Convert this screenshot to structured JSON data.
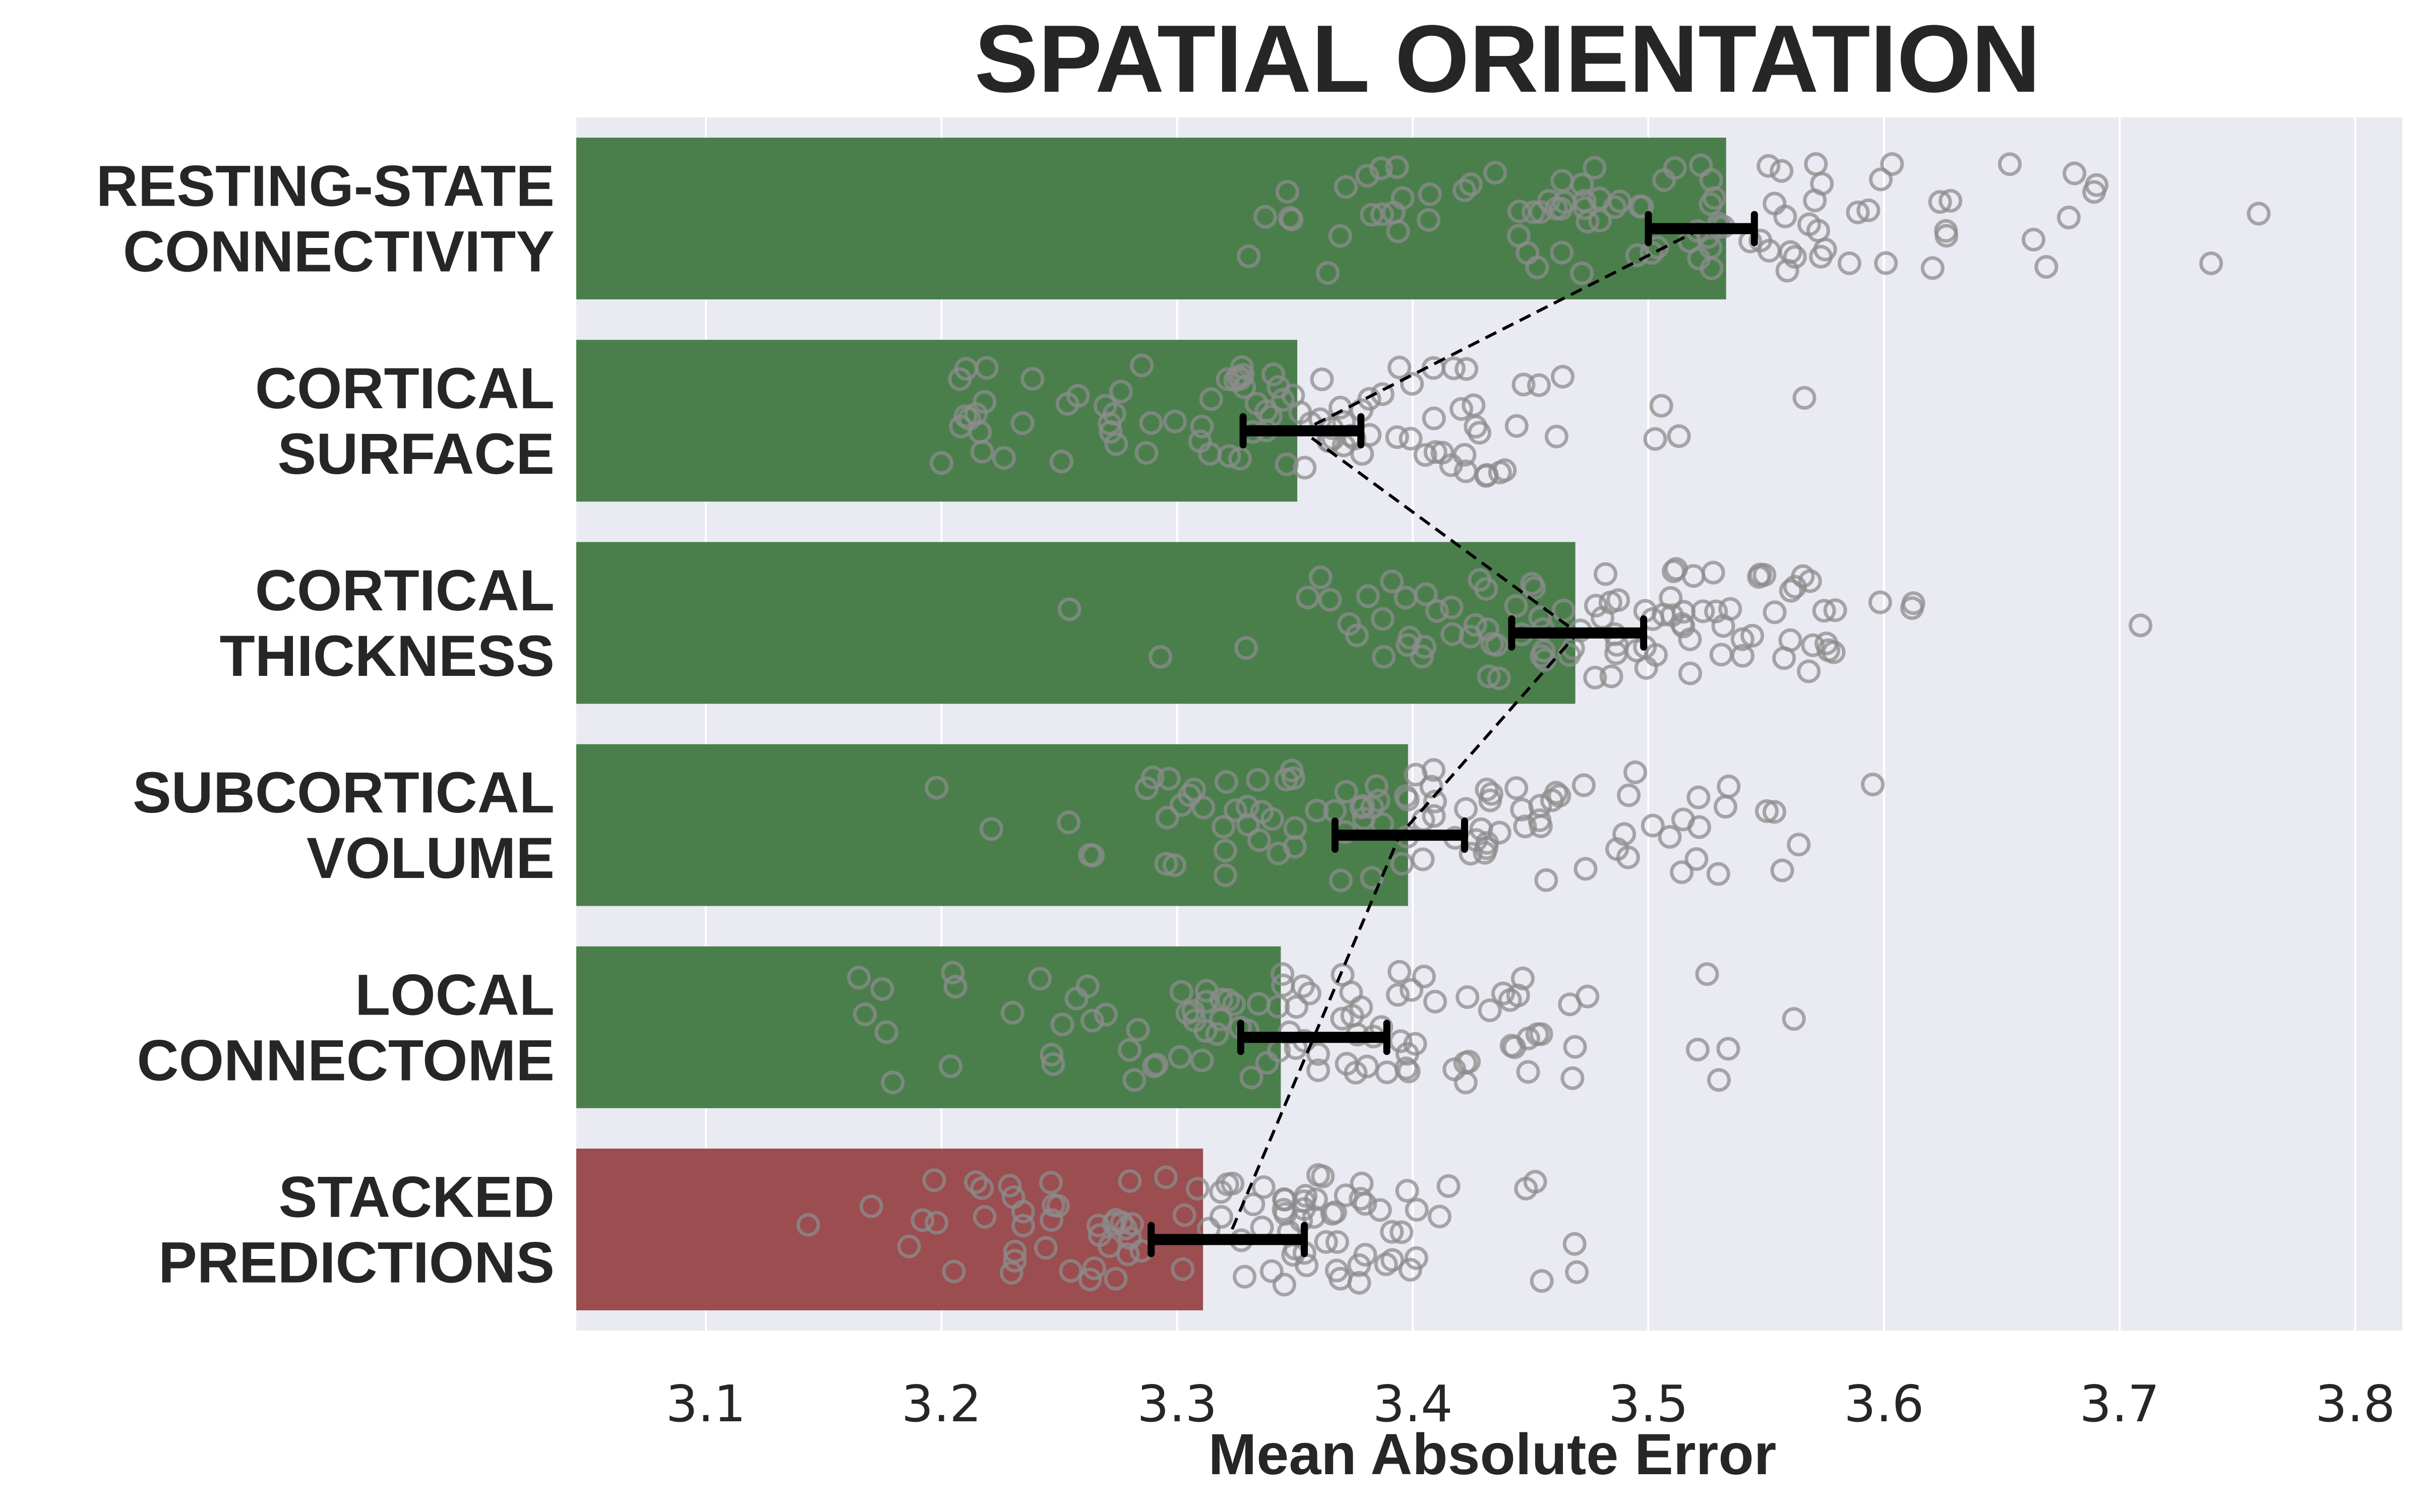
{
  "chart_data": {
    "type": "bar",
    "orientation": "horizontal",
    "title": "SPATIAL ORIENTATION",
    "xlabel": "Mean Absolute Error",
    "ylabel": "",
    "xlim": [
      3.045,
      3.82
    ],
    "xticks": [
      "3.1",
      "3.2",
      "3.3",
      "3.4",
      "3.5",
      "3.6",
      "3.7",
      "3.8"
    ],
    "grid": true,
    "legend": "none",
    "colors": {
      "background": "#EAEAF2",
      "grid": "#FFFFFF",
      "bar_main": "#4A7F4C",
      "bar_highlight": "#9B4D4F",
      "points": "#8C8C8C",
      "error_bar": "#000000"
    },
    "categories": [
      {
        "lines": [
          "RESTING-STATE",
          "CONNECTIVITY"
        ]
      },
      {
        "lines": [
          "CORTICAL",
          "SURFACE"
        ]
      },
      {
        "lines": [
          "CORTICAL",
          "THICKNESS"
        ]
      },
      {
        "lines": [
          "SUBCORTICAL",
          "VOLUME"
        ]
      },
      {
        "lines": [
          "LOCAL",
          "CONNECTOME"
        ]
      },
      {
        "lines": [
          "STACKED",
          "PREDICTIONS"
        ]
      }
    ],
    "values": [
      3.533,
      3.351,
      3.469,
      3.398,
      3.344,
      3.311
    ],
    "highlight_index": 5,
    "error_intervals": [
      [
        3.5,
        3.545
      ],
      [
        3.328,
        3.378
      ],
      [
        3.442,
        3.498
      ],
      [
        3.367,
        3.422
      ],
      [
        3.327,
        3.389
      ],
      [
        3.289,
        3.354
      ]
    ],
    "point_means": [
      3.522,
      3.353,
      3.47,
      3.395,
      3.358,
      3.322
    ],
    "point_ranges": [
      [
        3.16,
        3.82
      ],
      [
        3.11,
        3.64
      ],
      [
        3.17,
        3.73
      ],
      [
        3.11,
        3.69
      ],
      [
        3.045,
        3.65
      ],
      [
        3.08,
        3.6
      ]
    ],
    "points_per_category": 100
  }
}
